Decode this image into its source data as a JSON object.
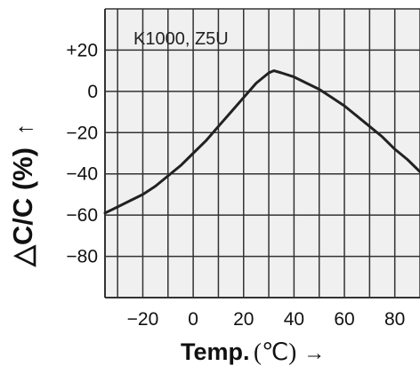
{
  "chart_data": {
    "type": "line",
    "annotation": "K1000, Z5U",
    "xlabel": "Temp. (℃)",
    "xlabel_main": "Temp.",
    "xlabel_unit": "(℃)",
    "xlabel_arrow": "→",
    "ylabel": "△C/C (%)",
    "ylabel_arrow": "↑",
    "xlim": [
      -35,
      90
    ],
    "ylim": [
      -100,
      40
    ],
    "xticks": [
      -20,
      0,
      20,
      40,
      60,
      80
    ],
    "xtick_labels": [
      "−20",
      "0",
      "20",
      "40",
      "60",
      "80"
    ],
    "yticks": [
      20,
      0,
      -20,
      -40,
      -60,
      -80
    ],
    "ytick_labels": [
      "+20",
      "0",
      "−20",
      "−40",
      "−60",
      "−80"
    ],
    "grid": true,
    "series": [
      {
        "x": [
          -35,
          -30,
          -25,
          -20,
          -15,
          -10,
          -5,
          0,
          5,
          10,
          15,
          20,
          25,
          30,
          32,
          35,
          40,
          45,
          50,
          55,
          60,
          65,
          70,
          75,
          80,
          85,
          90
        ],
        "y": [
          -59,
          -56,
          -53,
          -50,
          -46,
          -41,
          -36,
          -30,
          -24,
          -17,
          -10,
          -3,
          4,
          9,
          10,
          9,
          7,
          4,
          1,
          -3,
          -7,
          -12,
          -17,
          -22,
          -28,
          -33,
          -39
        ]
      }
    ]
  }
}
